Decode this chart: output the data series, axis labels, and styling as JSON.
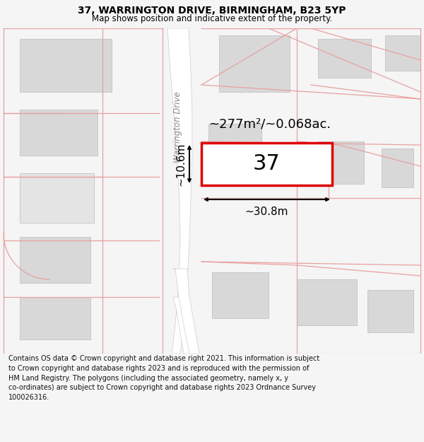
{
  "title": "37, WARRINGTON DRIVE, BIRMINGHAM, B23 5YP",
  "subtitle": "Map shows position and indicative extent of the property.",
  "footer": "Contains OS data © Crown copyright and database right 2021. This information is subject\nto Crown copyright and database rights 2023 and is reproduced with the permission of\nHM Land Registry. The polygons (including the associated geometry, namely x, y\nco-ordinates) are subject to Crown copyright and database rights 2023 Ordnance Survey\n100026316.",
  "area_label": "~277m²/~0.068ac.",
  "number_label": "37",
  "width_label": "~30.8m",
  "height_label": "~10.6m",
  "street_label": "Warrington Drive",
  "map_bg": "#f8f8f8",
  "road_color": "#ffffff",
  "building_color": "#d8d8d8",
  "building_edge": "#bbbbbb",
  "boundary_color": "#e8a0a0",
  "plot_edge": "#dd0000",
  "plot_fill": "#ffffff"
}
